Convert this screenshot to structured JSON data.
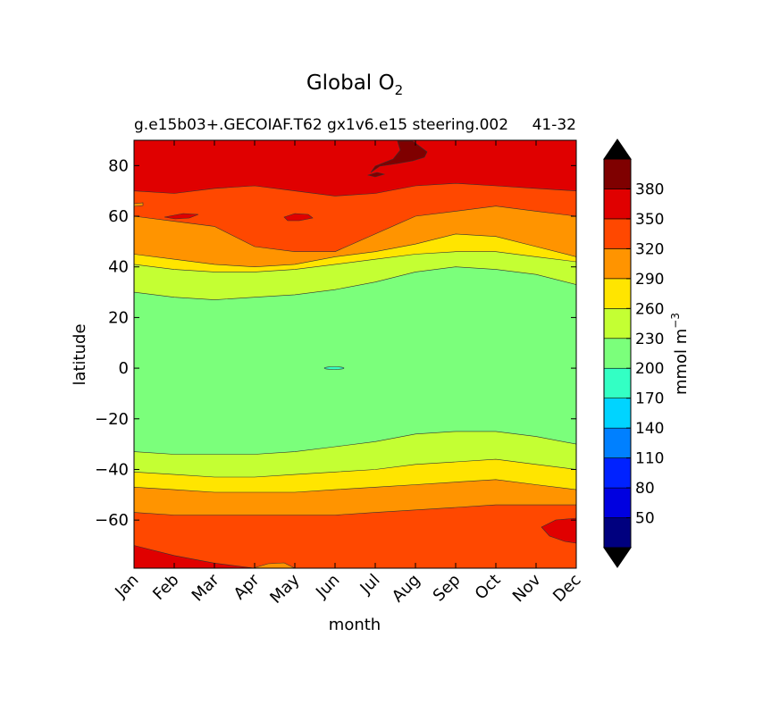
{
  "chart_data": {
    "type": "contour",
    "title": "Global O",
    "title_subscript": "2",
    "subtitle_left": "g.e15b03+.GECOIAF.T62 gx1v6.e15 steering.002",
    "subtitle_right": "41-32",
    "xlabel": "month",
    "ylabel": "latitude",
    "x_ticks": [
      "Jan",
      "Feb",
      "Mar",
      "Apr",
      "May",
      "Jun",
      "Jul",
      "Aug",
      "Sep",
      "Oct",
      "Nov",
      "Dec"
    ],
    "y_ticks": [
      80,
      60,
      40,
      20,
      0,
      -20,
      -40,
      -60
    ],
    "y_tick_labels": [
      "80",
      "60",
      "40",
      "20",
      "0",
      "−20",
      "−40",
      "−60"
    ],
    "ylim": [
      -79,
      90
    ],
    "colorbar": {
      "label": "mmol m",
      "label_superscript": "−3",
      "levels": [
        20,
        50,
        80,
        110,
        140,
        170,
        200,
        230,
        260,
        290,
        320,
        350,
        380,
        410
      ],
      "tick_labels": [
        "50",
        "80",
        "110",
        "140",
        "170",
        "200",
        "230",
        "260",
        "290",
        "320",
        "350",
        "380"
      ],
      "colors": [
        "#00007f",
        "#0000e0",
        "#0022ff",
        "#0080ff",
        "#00d4ff",
        "#33ffc4",
        "#7bff7b",
        "#c4ff33",
        "#ffe500",
        "#ff9400",
        "#ff4800",
        "#e00000",
        "#7f0000"
      ],
      "extend_low_color": "#000000",
      "extend_high_color": "#000000"
    },
    "contour_fields": {
      "months": [
        "Jan",
        "Feb",
        "Mar",
        "Apr",
        "May",
        "Jun",
        "Jul",
        "Aug",
        "Sep",
        "Oct",
        "Nov",
        "Dec"
      ],
      "regions_bottom_to_top": [
        {
          "band": "350-380",
          "upper_lat": [
            -70,
            -74,
            -77,
            -79,
            -79,
            -79,
            -79,
            -79,
            -79,
            -79,
            -79,
            -79
          ]
        },
        {
          "band": "320-350",
          "upper_lat": [
            -57,
            -58,
            -58,
            -58,
            -58,
            -58,
            -57,
            -56,
            -55,
            -54,
            -54,
            -54
          ]
        },
        {
          "band": "290-320",
          "upper_lat": [
            -47,
            -48,
            -49,
            -49,
            -49,
            -48,
            -47,
            -46,
            -45,
            -44,
            -46,
            -48
          ]
        },
        {
          "band": "260-290",
          "upper_lat": [
            -41,
            -42,
            -43,
            -43,
            -42,
            -41,
            -40,
            -38,
            -37,
            -36,
            -38,
            -40
          ]
        },
        {
          "band": "230-260",
          "upper_lat": [
            -33,
            -34,
            -34,
            -34,
            -33,
            -31,
            -29,
            -26,
            -25,
            -25,
            -27,
            -30
          ]
        },
        {
          "band": "200-230",
          "upper_lat": [
            30,
            28,
            27,
            28,
            29,
            31,
            34,
            38,
            40,
            39,
            37,
            33
          ]
        },
        {
          "band": "230-260",
          "upper_lat": [
            41,
            39,
            38,
            38,
            39,
            41,
            43,
            45,
            46,
            46,
            44,
            42
          ]
        },
        {
          "band": "260-290",
          "upper_lat": [
            45,
            43,
            41,
            40,
            41,
            44,
            46,
            49,
            53,
            52,
            48,
            44
          ]
        },
        {
          "band": "290-320",
          "upper_lat": [
            60,
            58,
            56,
            48,
            46,
            46,
            53,
            60,
            62,
            64,
            62,
            60
          ]
        },
        {
          "band": "320-350",
          "upper_lat": [
            70,
            69,
            71,
            72,
            70,
            68,
            69,
            72,
            73,
            72,
            71,
            70
          ]
        },
        {
          "band": "350-380",
          "upper_lat": [
            90,
            90,
            90,
            90,
            90,
            90,
            90,
            90,
            90,
            90,
            90,
            90
          ]
        }
      ]
    }
  }
}
